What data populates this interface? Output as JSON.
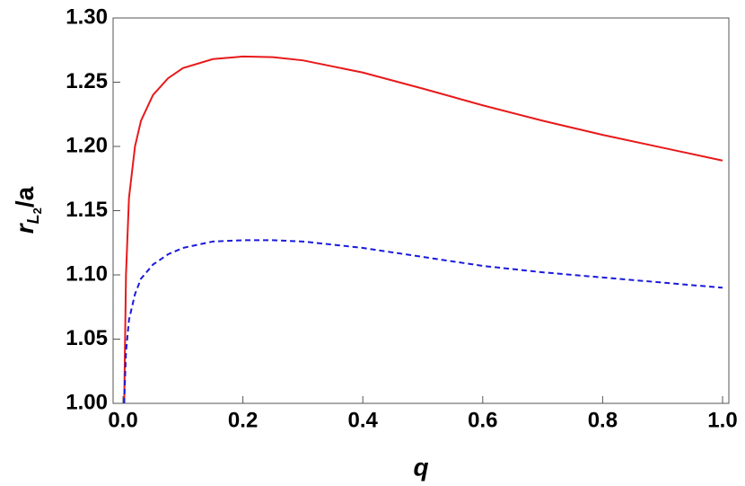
{
  "chart_data": {
    "type": "line",
    "xlabel": "q",
    "ylabel": {
      "symbol": "r",
      "subscript": "L",
      "subsubscript": "2",
      "suffix": "/a"
    },
    "x": [
      0.002,
      0.005,
      0.01,
      0.02,
      0.03,
      0.05,
      0.075,
      0.1,
      0.15,
      0.2,
      0.25,
      0.3,
      0.4,
      0.5,
      0.6,
      0.7,
      0.8,
      0.9,
      1.0
    ],
    "series": [
      {
        "color": "#e8191a",
        "dash": false,
        "values": [
          1.0,
          1.1,
          1.16,
          1.2,
          1.22,
          1.24,
          1.253,
          1.261,
          1.268,
          1.27,
          1.2695,
          1.267,
          1.2575,
          1.245,
          1.232,
          1.22,
          1.209,
          1.199,
          1.189
        ]
      },
      {
        "color": "#1a1adb",
        "dash": true,
        "values": [
          1.0,
          1.04,
          1.065,
          1.085,
          1.097,
          1.108,
          1.116,
          1.121,
          1.126,
          1.127,
          1.127,
          1.126,
          1.121,
          1.114,
          1.107,
          1.102,
          1.098,
          1.094,
          1.09
        ]
      }
    ],
    "xlim": [
      -0.0165,
      1.0105
    ],
    "ylim": [
      1.0,
      1.3
    ],
    "xticks": [
      {
        "value": 0,
        "label": "0.0"
      },
      0.2,
      0.4,
      0.6,
      0.8,
      {
        "value": 1,
        "label": "1.0"
      }
    ],
    "yticks": [
      {
        "value": 1,
        "label": "1.00"
      },
      1.05,
      {
        "value": 1.1,
        "label": "1.10"
      },
      1.15,
      {
        "value": 1.2,
        "label": "1.20"
      },
      1.25,
      {
        "value": 1.3,
        "label": "1.30"
      }
    ],
    "grid": false
  }
}
